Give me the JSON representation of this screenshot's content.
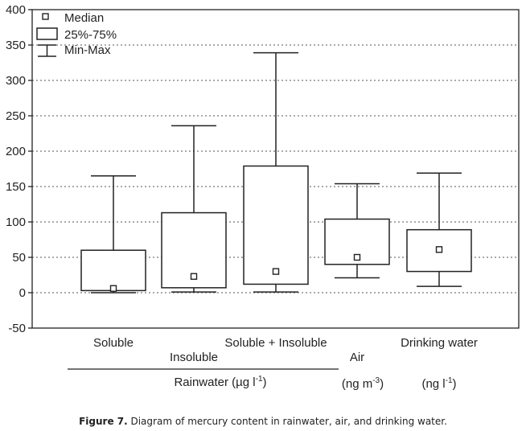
{
  "chart_data": {
    "type": "box",
    "ylim": [
      -50,
      400
    ],
    "yticks": [
      -50,
      0,
      50,
      100,
      150,
      200,
      250,
      300,
      350,
      400
    ],
    "grid": true,
    "legend_placement": "top-left",
    "legend": [
      {
        "symbol": "square",
        "label": "Median"
      },
      {
        "symbol": "box",
        "label": "25%-75%"
      },
      {
        "symbol": "whisker",
        "label": "Min-Max"
      }
    ],
    "categories": [
      "Soluble",
      "Insoluble",
      "Soluble + Insoluble",
      "Air",
      "Drinking water"
    ],
    "boxes": [
      {
        "name": "Soluble",
        "min": 0,
        "q1": 3,
        "median": 6,
        "q3": 60,
        "max": 165
      },
      {
        "name": "Insoluble",
        "min": 1,
        "q1": 7,
        "median": 23,
        "q3": 113,
        "max": 236
      },
      {
        "name": "Soluble + Insoluble",
        "min": 1,
        "q1": 12,
        "median": 30,
        "q3": 179,
        "max": 339
      },
      {
        "name": "Air",
        "min": 21,
        "q1": 40,
        "median": 50,
        "q3": 104,
        "max": 154
      },
      {
        "name": "Drinking water",
        "min": 9,
        "q1": 30,
        "median": 61,
        "q3": 89,
        "max": 169
      }
    ],
    "group_labels": {
      "rainwater": "Rainwater (µg l",
      "rainwater_exp": "-1",
      "rainwater_close": ")",
      "air": "(ng m",
      "air_exp": "-3",
      "air_close": ")",
      "drinking": "(ng l",
      "drinking_exp": "-1",
      "drinking_close": ")"
    }
  },
  "caption": {
    "label": "Figure 7.",
    "text": " Diagram of mercury content in rainwater, air, and drinking water."
  }
}
